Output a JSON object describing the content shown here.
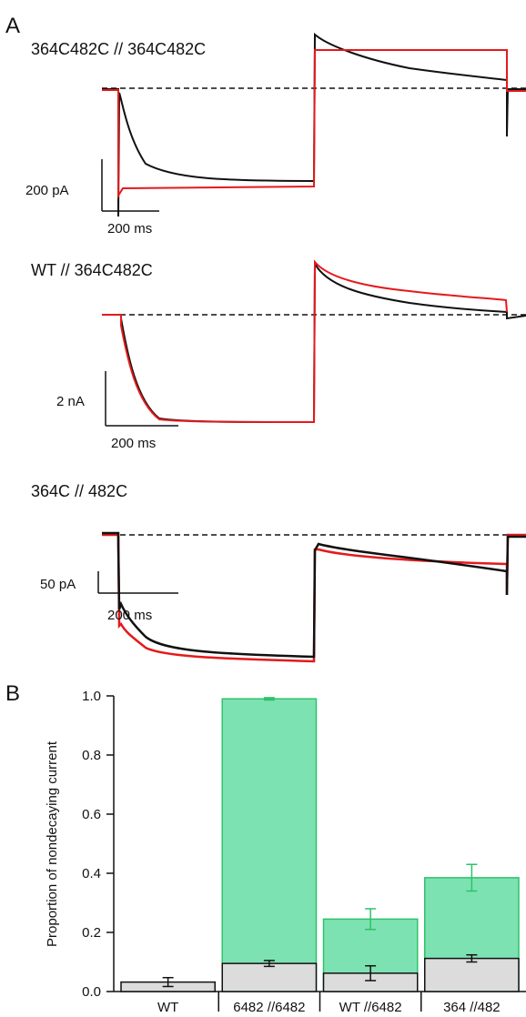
{
  "figure": {
    "panel_a_letter": "A",
    "panel_b_letter": "B"
  },
  "panel_a": {
    "traces": [
      {
        "title": "364C482C // 364C482C",
        "scale_current": "200 pA",
        "scale_time": "200 ms"
      },
      {
        "title": "WT // 364C482C",
        "scale_current": "2 nA",
        "scale_time": "200 ms"
      },
      {
        "title": "364C // 482C",
        "scale_current": "50 pA",
        "scale_time": "200 ms"
      }
    ],
    "colors": {
      "black": "#111111",
      "red": "#e41a1c"
    }
  },
  "chart_data": {
    "type": "bar",
    "ylabel": "Proportion of nondecaying current",
    "ylim": [
      0,
      1.0
    ],
    "yticks": [
      "0.0",
      "0.2",
      "0.4",
      "0.6",
      "0.8",
      "1.0"
    ],
    "categories": [
      "WT",
      "6482 //6482",
      "WT //6482",
      "364 //482"
    ],
    "series": [
      {
        "color": "#7de2b2",
        "edge": "#2ec26a",
        "values": [
          null,
          0.99,
          0.245,
          0.385
        ],
        "errors": [
          null,
          0.004,
          0.035,
          0.045
        ]
      },
      {
        "color": "#dcdcdc",
        "edge": "#111111",
        "values": [
          0.032,
          0.095,
          0.062,
          0.112
        ],
        "errors": [
          0.015,
          0.01,
          0.025,
          0.012
        ]
      }
    ]
  }
}
